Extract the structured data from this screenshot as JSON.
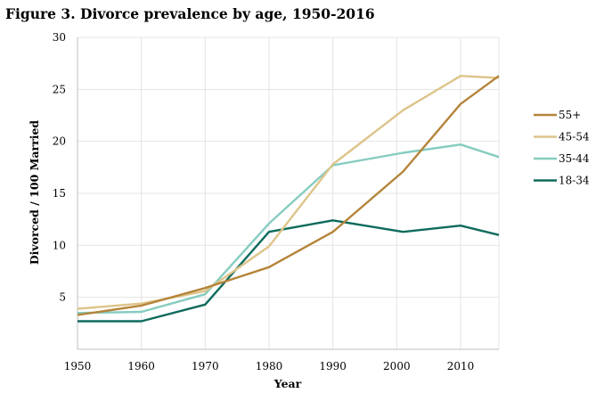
{
  "title": "Figure 3. Divorce prevalence by age, 1950-2016",
  "chart_data": {
    "type": "line",
    "title": "Figure 3. Divorce prevalence by age, 1950-2016",
    "xlabel": "Year",
    "ylabel": "Divorced / 100 Married",
    "xlim": [
      1950,
      2016
    ],
    "ylim": [
      0,
      30
    ],
    "xticks": [
      1950,
      1960,
      1970,
      1980,
      1990,
      2000,
      2010
    ],
    "yticks": [
      5,
      10,
      15,
      20,
      25,
      30
    ],
    "grid": "horizontal and vertical, light gray",
    "legend_position": "right",
    "series": [
      {
        "name": "55+",
        "color": "#B5843A",
        "x": [
          1950,
          1960,
          1970,
          1980,
          1990,
          2001,
          2010,
          2016
        ],
        "y": [
          3.3,
          4.2,
          5.9,
          7.9,
          11.3,
          17.1,
          23.6,
          26.3
        ]
      },
      {
        "name": "45-54",
        "color": "#DDC48A",
        "x": [
          1950,
          1960,
          1970,
          1980,
          1990,
          2001,
          2010,
          2016
        ],
        "y": [
          3.9,
          4.4,
          5.6,
          9.9,
          17.8,
          23.0,
          26.3,
          26.1
        ]
      },
      {
        "name": "35-44",
        "color": "#86CCC0",
        "x": [
          1950,
          1960,
          1970,
          1980,
          1990,
          2001,
          2010,
          2016
        ],
        "y": [
          3.5,
          3.6,
          5.3,
          12.1,
          17.7,
          18.9,
          19.7,
          18.5
        ]
      },
      {
        "name": "18-34",
        "color": "#0E6B5C",
        "x": [
          1950,
          1960,
          1970,
          1980,
          1990,
          2001,
          2010,
          2016
        ],
        "y": [
          2.7,
          2.7,
          4.3,
          11.3,
          12.4,
          11.3,
          11.9,
          11.0
        ]
      }
    ]
  }
}
